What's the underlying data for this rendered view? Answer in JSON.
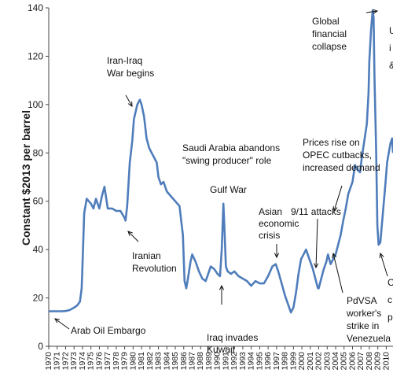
{
  "chart_data": {
    "type": "line",
    "title": "",
    "xlabel": "",
    "ylabel": "Constant $2013 per barrel",
    "ylim": [
      0,
      140
    ],
    "yticks": [
      0,
      20,
      40,
      60,
      80,
      100,
      120,
      140
    ],
    "xlim": [
      1970,
      2010.8
    ],
    "grid": false,
    "colors": {
      "line": "#4f7dbb",
      "axis": "#444444",
      "text": "#1a1a1a"
    },
    "xtick_labels": [
      "1970",
      "1971",
      "1972",
      "1973",
      "1974",
      "1975",
      "1976",
      "1977",
      "1978",
      "1979",
      "1980",
      "1981",
      "1982",
      "1983",
      "1984",
      "1985",
      "1986",
      "1987",
      "1988",
      "1989",
      "1990",
      "1991",
      "1992",
      "1993",
      "1994",
      "1995",
      "1996",
      "1997",
      "1998",
      "1999",
      "2000",
      "2001",
      "2002",
      "2003",
      "2004",
      "2005",
      "2006",
      "2007",
      "2008",
      "2009",
      "2010"
    ],
    "series": [
      {
        "x": [
          1970.0,
          1970.5,
          1971.0,
          1971.5,
          1972.0,
          1972.5,
          1973.0,
          1973.4,
          1973.7,
          1973.9,
          1974.0,
          1974.2,
          1974.5,
          1975.0,
          1975.3,
          1975.6,
          1975.9,
          1976.0,
          1976.3,
          1976.6,
          1977.0,
          1977.5,
          1978.0,
          1978.5,
          1979.0,
          1979.1,
          1979.3,
          1979.6,
          1979.9,
          1980.1,
          1980.5,
          1980.8,
          1981.0,
          1981.3,
          1981.6,
          1981.9,
          1982.2,
          1982.5,
          1982.8,
          1983.0,
          1983.3,
          1983.6,
          1984.0,
          1984.5,
          1985.0,
          1985.5,
          1985.9,
          1986.1,
          1986.3,
          1986.5,
          1986.8,
          1987.0,
          1987.4,
          1987.8,
          1988.2,
          1988.6,
          1988.9,
          1989.2,
          1989.6,
          1990.0,
          1990.3,
          1990.5,
          1990.7,
          1990.8,
          1991.0,
          1991.2,
          1991.6,
          1992.0,
          1992.5,
          1993.0,
          1993.5,
          1994.0,
          1994.5,
          1995.0,
          1995.5,
          1996.0,
          1996.5,
          1996.9,
          1997.2,
          1997.6,
          1998.0,
          1998.4,
          1998.7,
          1999.0,
          1999.3,
          1999.6,
          1999.9,
          2000.2,
          2000.5,
          2000.8,
          2001.0,
          2001.3,
          2001.6,
          2001.9,
          2002.0,
          2002.3,
          2002.6,
          2002.9,
          2003.1,
          2003.4,
          2003.7,
          2004.0,
          2004.3,
          2004.6,
          2004.9,
          2005.2,
          2005.5,
          2005.8,
          2006.0,
          2006.3,
          2006.6,
          2006.9,
          2007.1,
          2007.4,
          2007.7,
          2007.9,
          2008.0,
          2008.2,
          2008.4,
          2008.5,
          2008.6,
          2008.8,
          2008.95,
          2009.1,
          2009.3,
          2009.6,
          2009.9,
          2010.1,
          2010.3,
          2010.5,
          2010.7,
          2010.8
        ],
        "values": [
          14.5,
          14.5,
          14.5,
          14.5,
          14.6,
          15.0,
          16.0,
          17.0,
          18.5,
          24.0,
          33.0,
          55.0,
          61.0,
          59.0,
          57.0,
          61.0,
          58.0,
          57.0,
          62.0,
          66.0,
          57.0,
          57.0,
          56.0,
          56.0,
          53.0,
          52.0,
          58.0,
          76.0,
          85.0,
          94.0,
          100.0,
          102.0,
          100.0,
          95.0,
          86.0,
          82.0,
          80.0,
          78.0,
          76.0,
          70.0,
          67.0,
          68.0,
          64.0,
          62.0,
          60.0,
          58.0,
          46.0,
          27.0,
          24.0,
          28.0,
          35.0,
          38.0,
          35.0,
          31.0,
          28.0,
          27.0,
          30.0,
          33.0,
          32.0,
          30.0,
          29.0,
          40.0,
          59.0,
          51.0,
          33.0,
          31.0,
          30.0,
          31.0,
          29.0,
          28.0,
          27.0,
          25.0,
          27.0,
          26.0,
          26.0,
          29.0,
          33.0,
          34.0,
          31.0,
          26.0,
          21.0,
          17.0,
          14.0,
          16.0,
          22.0,
          30.0,
          36.0,
          38.0,
          40.0,
          37.0,
          35.0,
          32.0,
          28.0,
          24.0,
          24.0,
          28.0,
          32.0,
          35.0,
          38.0,
          34.0,
          36.0,
          38.0,
          42.0,
          46.0,
          52.0,
          57.0,
          63.0,
          66.0,
          68.0,
          75.0,
          73.0,
          72.0,
          78.0,
          85.0,
          92.0,
          105.0,
          118.0,
          131.0,
          139.0,
          136.0,
          112.0,
          82.0,
          50.0,
          42.0,
          43.0,
          55.0,
          67.0,
          76.0,
          80.0,
          84.0,
          86.0,
          80.0
        ]
      }
    ],
    "annotations": [
      {
        "lines": [
          "Arab Oil Embargo"
        ],
        "x": 1973.0,
        "y": 16.0
      },
      {
        "lines": [
          "Iranian",
          "Revolution"
        ],
        "x": 1979.0,
        "y": 53.0
      },
      {
        "lines": [
          "Iran-Iraq",
          "War begins"
        ],
        "x": 1980.7,
        "y": 101.0
      },
      {
        "lines": [
          "Saudi Arabia abandons",
          "\"swing producer\" role"
        ],
        "x": null,
        "y": null
      },
      {
        "lines": [
          "Gulf War"
        ],
        "x": 1990.7,
        "y": 59.0
      },
      {
        "lines": [
          "Iraq invades",
          "Kuwait"
        ],
        "x": 1990.4,
        "y": 30.0
      },
      {
        "lines": [
          "Asian",
          "economic",
          "crisis"
        ],
        "x": 1997.2,
        "y": 35.0
      },
      {
        "lines": [
          "9/11 attacks"
        ],
        "x": 2001.8,
        "y": 25.0
      },
      {
        "lines": [
          "Prices rise on",
          "OPEC cutbacks,",
          "increased demand"
        ],
        "x": 2004.2,
        "y": 52.0
      },
      {
        "lines": [
          "PdVSA",
          "worker's",
          "strike in",
          "Venezuela"
        ],
        "x": 2002.7,
        "y": 40.0
      },
      {
        "lines": [
          "Global",
          "financial",
          "collapse"
        ],
        "x": 2008.3,
        "y": 139.0
      },
      {
        "lines": [
          "U",
          "i",
          "&"
        ],
        "x": null,
        "y": null
      },
      {
        "lines": [
          "C",
          "c",
          "p"
        ],
        "x": 2009.0,
        "y": 42.0
      }
    ]
  }
}
